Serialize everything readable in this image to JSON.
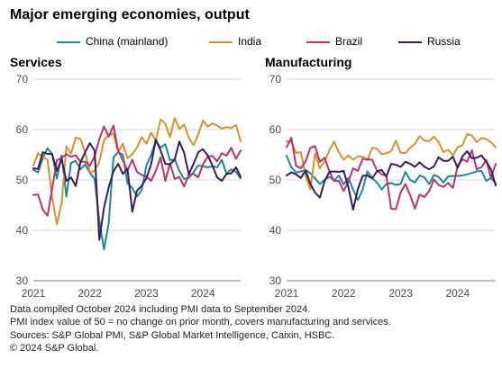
{
  "title": "Major emerging economies, output",
  "legend": [
    {
      "name": "China (mainland)",
      "color": "#1a8a9a"
    },
    {
      "name": "India",
      "color": "#d9922a"
    },
    {
      "name": "Brazil",
      "color": "#c0306a"
    },
    {
      "name": "Russia",
      "color": "#3d1a5c"
    }
  ],
  "notes": [
    "Data compiled October 2024 including PMI data to September 2024.",
    "PMI index value of 50 = no change on prior month, covers manufacturing and services.",
    "Sources: S&P Global PMI, S&P Global Market Intelligence, Caixin, HSBC.",
    "© 2024 S&P Global."
  ],
  "chart_data": [
    {
      "type": "line",
      "title": "Services",
      "x_ticks": [
        "2021",
        "2022",
        "2023",
        "2024"
      ],
      "y_ticks": [
        30,
        40,
        50,
        60,
        70
      ],
      "ylim": [
        30,
        70
      ],
      "x_start": "2021-01",
      "x_end": "2024-09",
      "series": [
        {
          "name": "China (mainland)",
          "color": "#1a8a9a",
          "values": [
            52.0,
            51.5,
            54.3,
            56.3,
            55.1,
            50.3,
            54.9,
            46.7,
            53.4,
            53.8,
            52.1,
            53.1,
            51.4,
            50.2,
            42.0,
            36.2,
            41.4,
            54.5,
            55.5,
            55.0,
            49.3,
            48.4,
            46.7,
            48.0,
            52.9,
            55.0,
            57.8,
            56.4,
            57.1,
            53.9,
            54.1,
            51.8,
            50.2,
            50.4,
            51.5,
            52.9,
            52.7,
            52.5,
            52.7,
            52.5,
            54.0,
            51.2,
            52.1,
            51.6,
            50.3
          ]
        },
        {
          "name": "India",
          "color": "#d9922a",
          "values": [
            52.8,
            55.3,
            54.6,
            54.0,
            46.4,
            41.2,
            45.4,
            56.7,
            55.2,
            58.4,
            58.1,
            55.5,
            51.5,
            51.8,
            53.6,
            57.9,
            58.9,
            59.2,
            55.5,
            57.2,
            54.3,
            55.1,
            56.4,
            58.5,
            57.2,
            59.4,
            57.8,
            62.0,
            61.2,
            58.5,
            62.3,
            60.1,
            61.0,
            58.4,
            56.9,
            59.0,
            61.8,
            60.6,
            61.2,
            60.8,
            60.2,
            60.5,
            60.3,
            60.9,
            57.7
          ]
        },
        {
          "name": "Brazil",
          "color": "#c0306a",
          "values": [
            47.0,
            47.1,
            44.1,
            42.9,
            48.3,
            53.9,
            54.4,
            55.1,
            54.6,
            54.9,
            53.6,
            53.6,
            52.8,
            54.7,
            58.1,
            60.6,
            58.6,
            60.8,
            55.8,
            53.9,
            51.9,
            54.0,
            51.6,
            51.0,
            50.7,
            49.8,
            51.8,
            54.5,
            49.8,
            53.3,
            50.2,
            50.6,
            48.7,
            51.0,
            51.2,
            50.5,
            53.1,
            54.6,
            54.8,
            53.7,
            55.3,
            54.8,
            56.4,
            54.2,
            55.8
          ]
        },
        {
          "name": "Russia",
          "color": "#3d1a5c",
          "values": [
            52.3,
            52.2,
            55.5,
            55.2,
            55.1,
            51.8,
            54.1,
            49.8,
            50.5,
            48.8,
            53.5,
            55.5,
            57.3,
            55.8,
            38.1,
            44.5,
            48.5,
            51.7,
            53.2,
            51.2,
            52.2,
            43.7,
            47.9,
            48.8,
            50.4,
            53.1,
            58.0,
            55.9,
            53.2,
            53.1,
            54.0,
            57.6,
            55.4,
            51.1,
            53.2,
            55.5,
            56.1,
            54.9,
            52.9,
            50.5,
            49.8,
            51.2,
            51.3,
            52.5,
            50.6
          ]
        }
      ]
    },
    {
      "type": "line",
      "title": "Manufacturing",
      "x_ticks": [
        "2021",
        "2022",
        "2023",
        "2024"
      ],
      "y_ticks": [
        30,
        40,
        50,
        60,
        70
      ],
      "ylim": [
        30,
        70
      ],
      "x_start": "2021-01",
      "x_end": "2024-09",
      "series": [
        {
          "name": "China (mainland)",
          "color": "#1a8a9a",
          "values": [
            54.8,
            52.5,
            51.5,
            51.7,
            52.0,
            51.3,
            50.3,
            49.2,
            50.0,
            50.6,
            49.9,
            50.9,
            49.1,
            50.4,
            48.1,
            46.0,
            48.1,
            51.7,
            50.4,
            49.5,
            48.1,
            49.2,
            49.4,
            49.0,
            49.2,
            51.6,
            50.0,
            49.5,
            50.9,
            50.5,
            49.2,
            51.0,
            50.6,
            49.5,
            50.7,
            50.8,
            50.8,
            50.9,
            51.1,
            51.4,
            51.7,
            51.8,
            49.8,
            50.4,
            49.3
          ]
        },
        {
          "name": "India",
          "color": "#d9922a",
          "values": [
            57.7,
            57.5,
            55.4,
            55.5,
            50.8,
            48.1,
            55.3,
            52.3,
            53.7,
            55.9,
            57.6,
            55.5,
            54.0,
            54.9,
            54.0,
            54.7,
            54.6,
            53.9,
            56.4,
            56.2,
            55.1,
            55.3,
            55.7,
            57.8,
            55.4,
            55.3,
            56.4,
            57.2,
            58.7,
            57.8,
            57.7,
            58.6,
            57.5,
            55.5,
            56.0,
            54.9,
            56.5,
            56.9,
            59.1,
            58.8,
            57.5,
            58.3,
            58.1,
            57.5,
            56.5
          ]
        },
        {
          "name": "Brazil",
          "color": "#c0306a",
          "values": [
            56.5,
            58.4,
            52.8,
            52.3,
            53.7,
            56.4,
            56.7,
            53.6,
            54.4,
            51.7,
            49.8,
            49.8,
            47.8,
            49.6,
            52.3,
            51.8,
            54.2,
            54.1,
            54.0,
            51.9,
            51.1,
            50.8,
            44.3,
            44.2,
            47.5,
            49.2,
            47.0,
            44.3,
            47.1,
            46.6,
            47.8,
            50.1,
            49.0,
            48.6,
            49.4,
            48.4,
            52.8,
            54.1,
            53.6,
            55.9,
            52.1,
            52.5,
            54.0,
            50.4,
            53.2
          ]
        },
        {
          "name": "Russia",
          "color": "#3d1a5c",
          "values": [
            50.9,
            51.5,
            51.1,
            50.4,
            51.9,
            49.2,
            47.5,
            46.5,
            49.8,
            51.6,
            51.7,
            51.6,
            51.8,
            48.6,
            44.1,
            48.2,
            50.8,
            50.9,
            50.3,
            51.7,
            52.0,
            50.7,
            53.2,
            53.0,
            52.6,
            53.6,
            53.2,
            52.6,
            53.5,
            52.6,
            52.1,
            52.7,
            54.5,
            53.8,
            53.8,
            54.6,
            52.4,
            54.7,
            55.7,
            54.3,
            54.4,
            54.9,
            53.6,
            52.1,
            48.9
          ]
        }
      ]
    }
  ]
}
